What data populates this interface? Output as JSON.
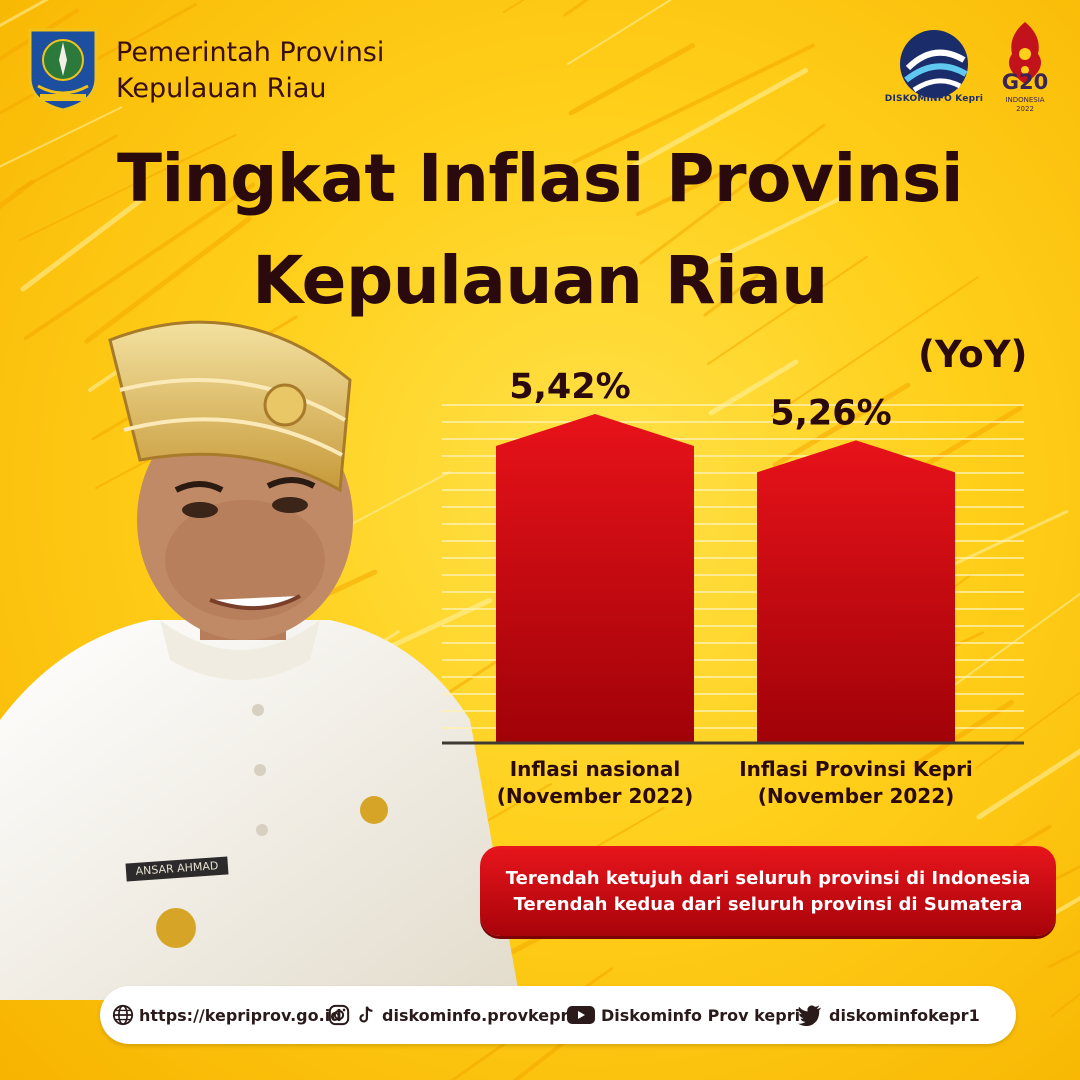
{
  "header": {
    "org_line_1": "Pemerintah Provinsi",
    "org_line_2": "Kepulauan Riau",
    "kominfo_label": "DISKOMINFO Kepri",
    "g20_label": "G20",
    "g20_sub_1": "INDONESIA",
    "g20_sub_2": "2022"
  },
  "title": {
    "line_1": "Tingkat Inflasi Provinsi",
    "line_2": "Kepulauan Riau",
    "qualifier": "(YoY)"
  },
  "person": {
    "nameplate": "ANSAR AHMAD"
  },
  "chart_data": {
    "type": "bar",
    "categories": [
      [
        "Inflasi nasional",
        "(November 2022)"
      ],
      [
        "Inflasi Provinsi Kepri",
        "(November 2022)"
      ]
    ],
    "values": [
      5.42,
      5.26
    ],
    "value_labels": [
      "5,42%",
      "5,26%"
    ],
    "ylabel": "",
    "grid": true,
    "colors": {
      "bar_top": "#e8121a",
      "bar_bottom": "#a00208"
    }
  },
  "notes": {
    "line_1": "Terendah ketujuh dari seluruh provinsi di Indonesia",
    "line_2": "Terendah kedua dari seluruh provinsi di Sumatera"
  },
  "footer": {
    "website": "https://kepriprov.go.id",
    "social_handle": "diskominfo.provkepri",
    "youtube": "Diskominfo Prov kepri",
    "twitter": "diskominfokepr1",
    "icons": [
      "globe-icon",
      "instagram-icon",
      "tiktok-icon",
      "youtube-icon",
      "twitter-icon"
    ]
  },
  "colors": {
    "background": "#ffcf1a",
    "title": "#2a0a0d",
    "accent_red": "#e8151c"
  }
}
